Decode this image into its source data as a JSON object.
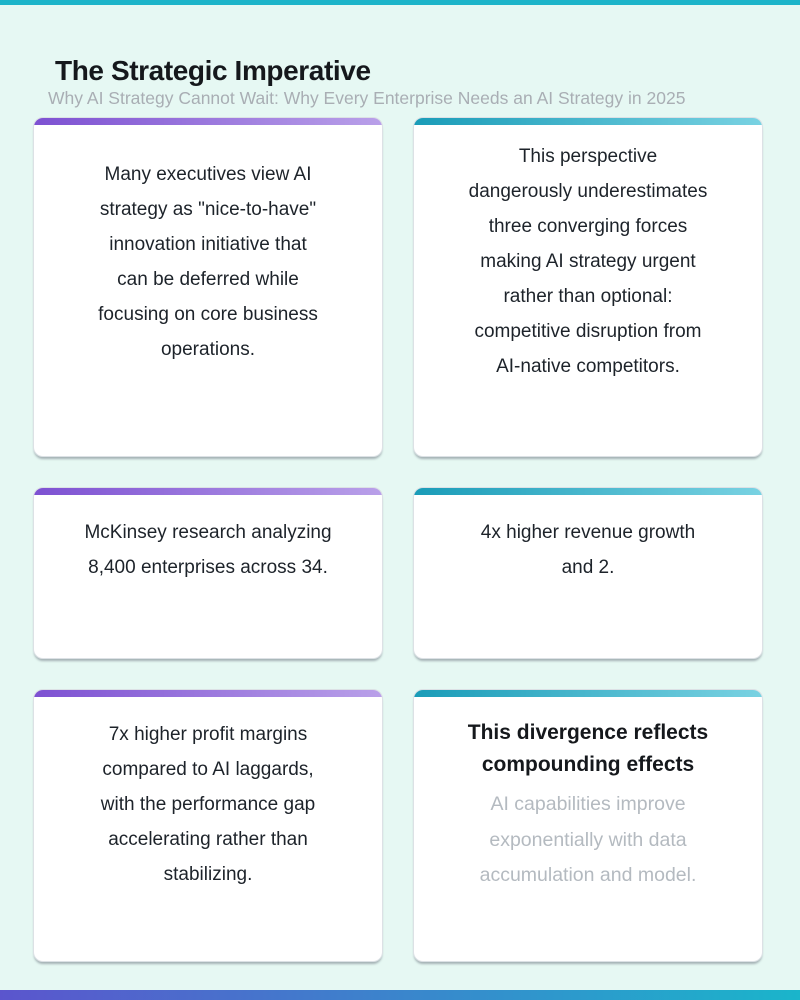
{
  "page": {
    "background_color": "#e6f8f3",
    "top_bar_color": "#1cb4c9",
    "bottom_bar_gradient": [
      "#5b55cd",
      "#1ab5cb"
    ],
    "accent_purple_gradient": [
      "#7d51d2",
      "#b9a0e9"
    ],
    "accent_teal_gradient": [
      "#1a9cb8",
      "#79d2e2"
    ]
  },
  "header": {
    "title": "The Strategic Imperative",
    "subtitle": "Why AI Strategy Cannot Wait: Why Every Enterprise Needs an AI Strategy in 2025"
  },
  "cards": [
    {
      "accent": "purple",
      "text": "Many executives view AI\nstrategy as \"nice-to-have\"\ninnovation initiative that\ncan be deferred while\nfocusing on core business\noperations."
    },
    {
      "accent": "teal",
      "text": "This perspective\ndangerously underestimates\nthree converging forces\nmaking AI strategy urgent\nrather than optional:\ncompetitive disruption from\nAI-native competitors."
    },
    {
      "accent": "purple",
      "text": "McKinsey research analyzing\n8,400 enterprises across 34."
    },
    {
      "accent": "teal",
      "text": "4x higher revenue growth\nand 2."
    },
    {
      "accent": "purple",
      "text": "7x higher profit margins\ncompared to AI laggards,\nwith the performance gap\naccelerating rather than\nstabilizing."
    },
    {
      "accent": "teal",
      "heading": "This divergence reflects\ncompounding effects",
      "text": "AI capabilities improve\nexponentially with data\naccumulation and model."
    }
  ]
}
